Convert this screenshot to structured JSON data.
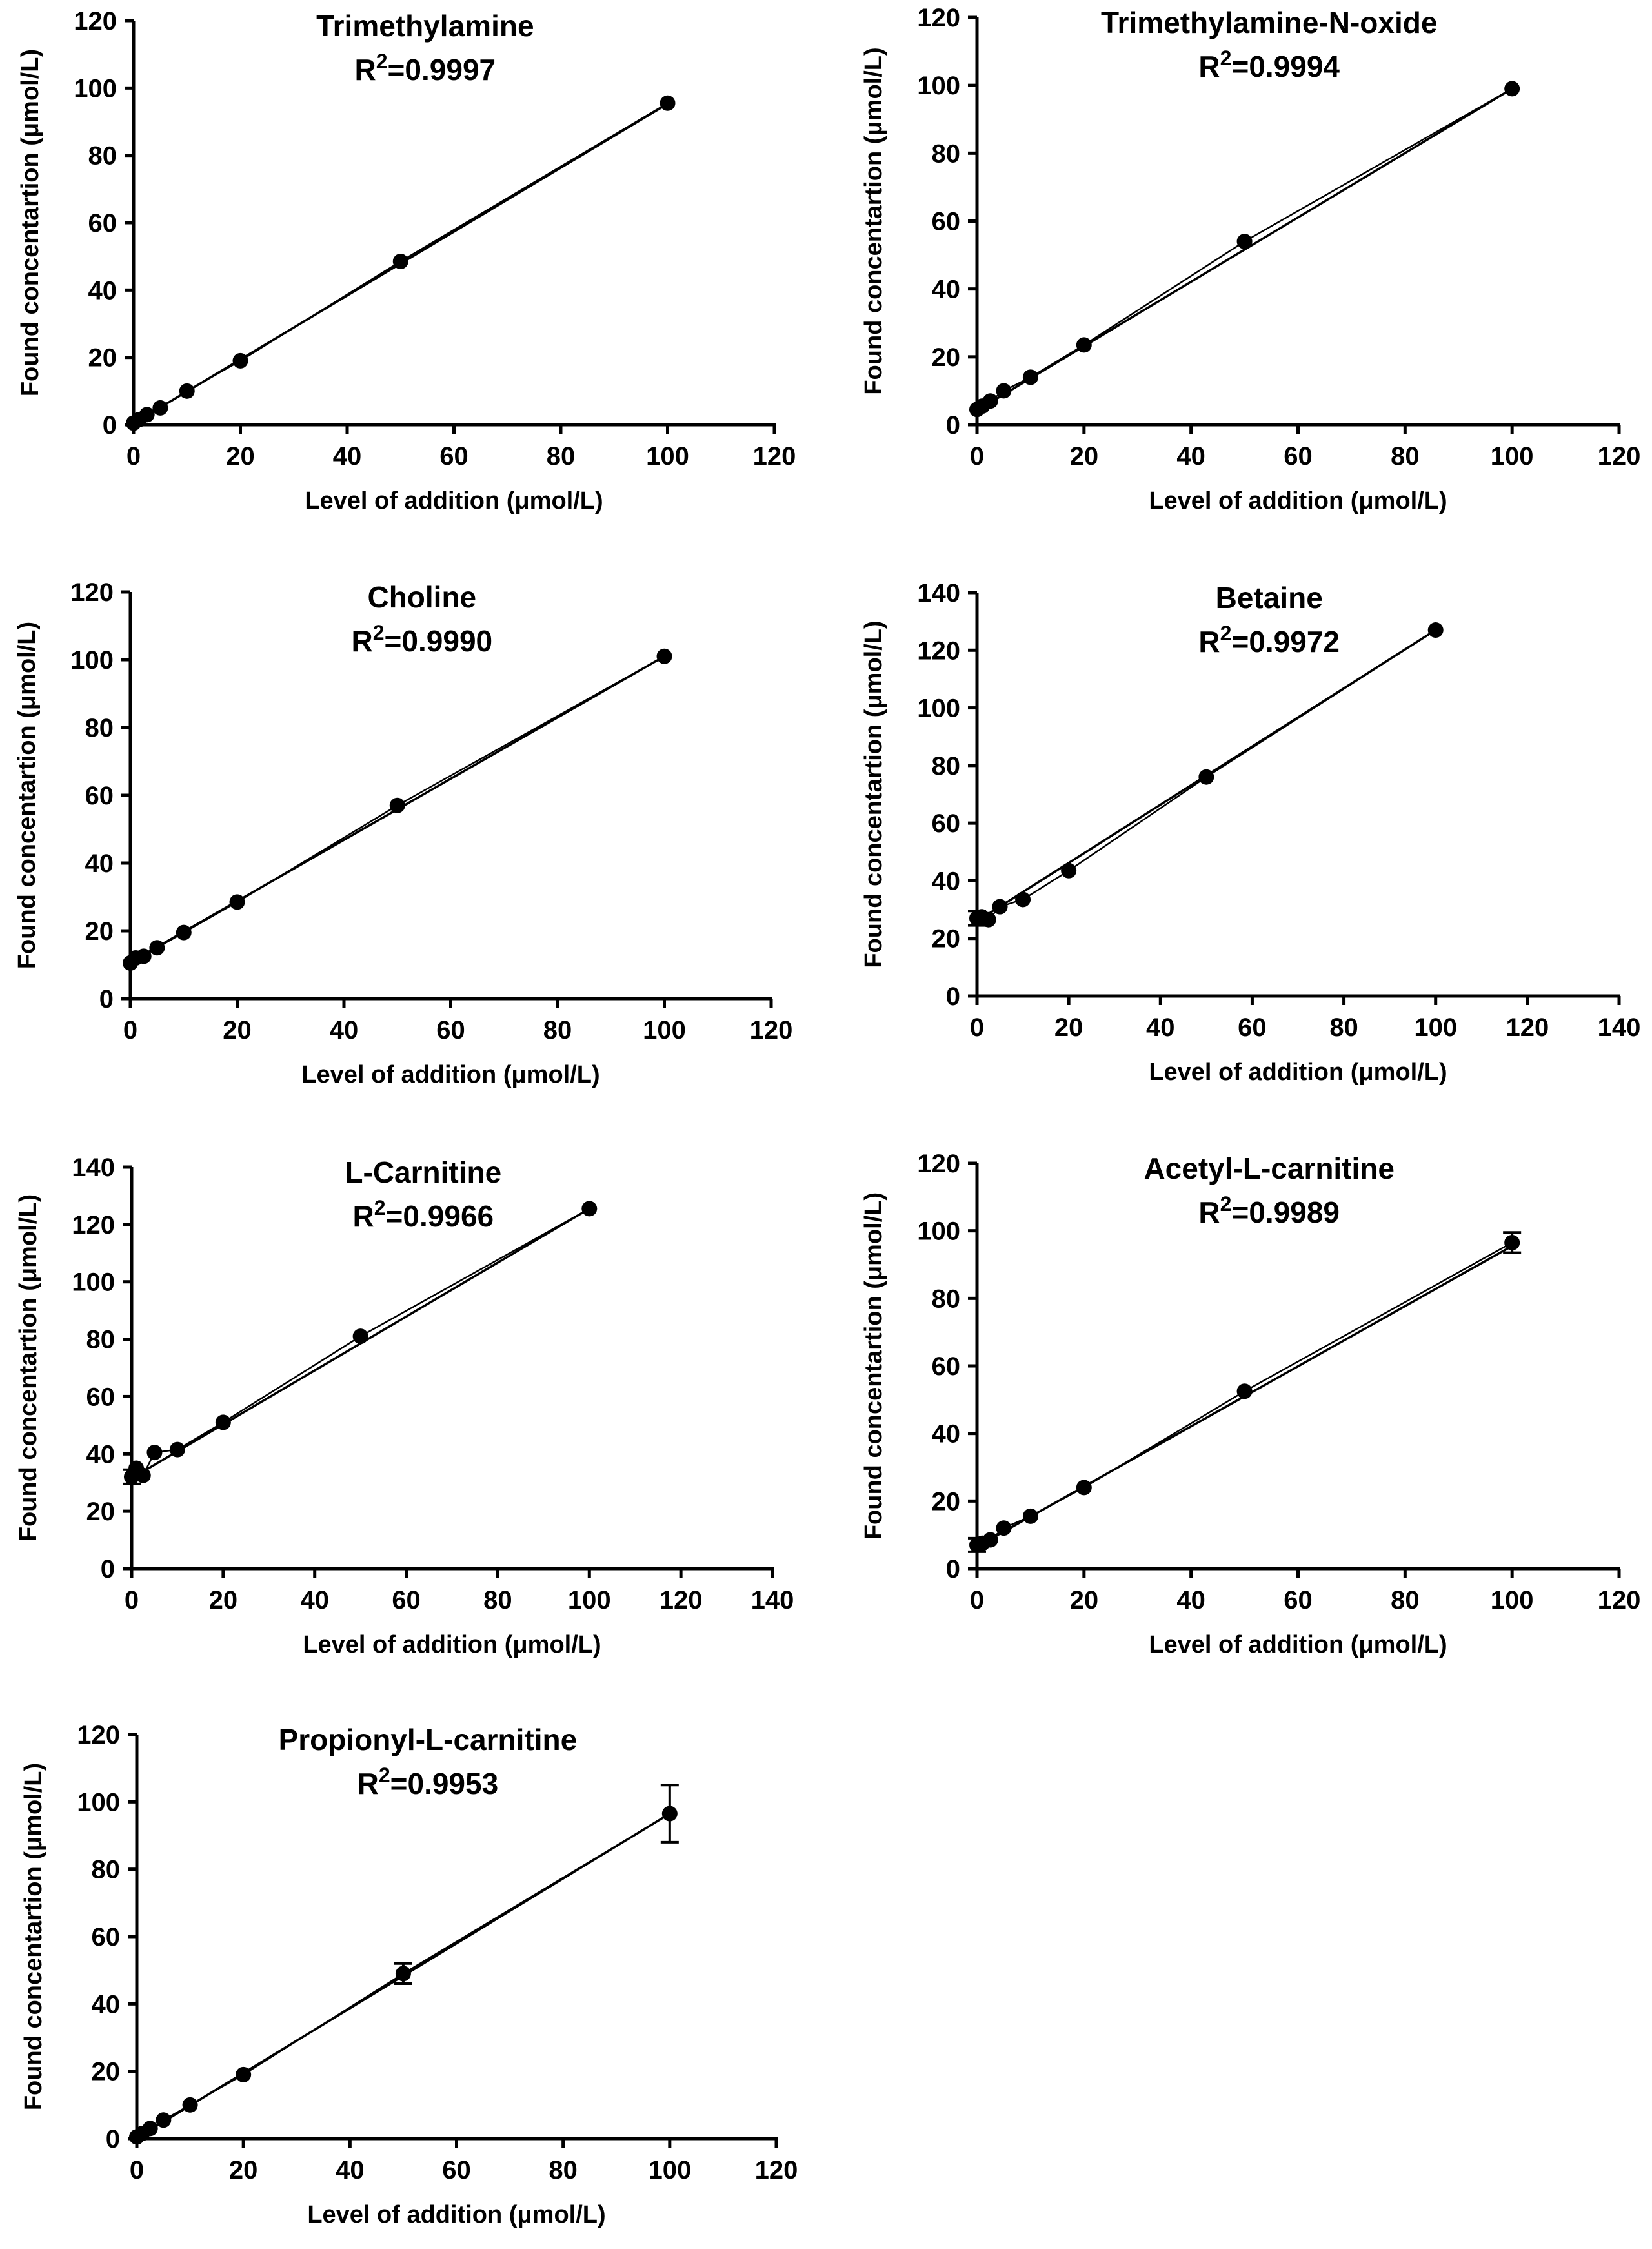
{
  "chart_data": [
    {
      "type": "scatter",
      "title": "Trimethylamine",
      "r2_prefix": "R",
      "r2_sup": "2",
      "r2_value": "=0.9997",
      "xlabel": "Level of addition (μmol/L)",
      "ylabel": "Found concentartion (μmol/L)",
      "xlim": [
        0,
        120
      ],
      "ylim": [
        0,
        120
      ],
      "xticks": [
        "0",
        "20",
        "40",
        "60",
        "80",
        "100",
        "120"
      ],
      "yticks": [
        "0",
        "20",
        "40",
        "60",
        "80",
        "100",
        "120"
      ],
      "x": [
        0,
        1,
        2.5,
        5,
        10,
        20,
        50,
        100
      ],
      "y": [
        0.5,
        1.5,
        3,
        5,
        10,
        19,
        48.5,
        95.5
      ],
      "err": [
        0,
        0,
        0,
        0,
        0,
        0,
        0,
        0
      ],
      "fit": [
        0.4,
        95.3
      ]
    },
    {
      "type": "scatter",
      "title": "Trimethylamine-N-oxide",
      "r2_prefix": "R",
      "r2_sup": "2",
      "r2_value": "=0.9994",
      "xlabel": "Level of addition (μmol/L)",
      "ylabel": "Found concentartion (μmol/L)",
      "xlim": [
        0,
        120
      ],
      "ylim": [
        0,
        120
      ],
      "xticks": [
        "0",
        "20",
        "40",
        "60",
        "80",
        "100",
        "120"
      ],
      "yticks": [
        "0",
        "20",
        "40",
        "60",
        "80",
        "100",
        "120"
      ],
      "x": [
        0,
        1,
        2.5,
        5,
        10,
        20,
        50,
        100
      ],
      "y": [
        4.5,
        5.5,
        7,
        10,
        14,
        23.5,
        54,
        99
      ],
      "err": [
        0,
        0,
        0,
        0,
        0,
        0,
        0,
        0
      ],
      "fit": [
        4.2,
        99
      ]
    },
    {
      "type": "scatter",
      "title": "Choline",
      "r2_prefix": "R",
      "r2_sup": "2",
      "r2_value": "=0.9990",
      "xlabel": "Level of addition (μmol/L)",
      "ylabel": "Found concentartion (μmol/L)",
      "xlim": [
        0,
        120
      ],
      "ylim": [
        0,
        120
      ],
      "xticks": [
        "0",
        "20",
        "40",
        "60",
        "80",
        "100",
        "120"
      ],
      "yticks": [
        "0",
        "20",
        "40",
        "60",
        "80",
        "100",
        "120"
      ],
      "x": [
        0,
        1,
        2.5,
        5,
        10,
        20,
        50,
        100
      ],
      "y": [
        10.5,
        12,
        12.5,
        15,
        19.5,
        28.5,
        57,
        101
      ],
      "err": [
        0,
        0,
        0,
        0,
        0,
        0,
        0,
        0
      ],
      "fit": [
        10.7,
        101
      ]
    },
    {
      "type": "scatter",
      "title": "Betaine",
      "r2_prefix": "R",
      "r2_sup": "2",
      "r2_value": "=0.9972",
      "xlabel": "Level of addition (μmol/L)",
      "ylabel": "Found concentartion (μmol/L)",
      "xlim": [
        0,
        140
      ],
      "ylim": [
        0,
        140
      ],
      "xticks": [
        "0",
        "20",
        "40",
        "60",
        "80",
        "100",
        "120",
        "140"
      ],
      "yticks": [
        "0",
        "20",
        "40",
        "60",
        "80",
        "100",
        "120",
        "140"
      ],
      "x": [
        0,
        1,
        2.5,
        5,
        10,
        20,
        50,
        100
      ],
      "y": [
        27,
        27.5,
        26.5,
        31,
        33.5,
        43.5,
        76,
        127
      ],
      "err": [
        2.5,
        0,
        0,
        0,
        0,
        0,
        0,
        0
      ],
      "fit": [
        26,
        127
      ]
    },
    {
      "type": "scatter",
      "title": "L-Carnitine",
      "r2_prefix": "R",
      "r2_sup": "2",
      "r2_value": "=0.9966",
      "xlabel": "Level of addition (μmol/L)",
      "ylabel": "Found concentartion (μmol/L)",
      "xlim": [
        0,
        140
      ],
      "ylim": [
        0,
        140
      ],
      "xticks": [
        "0",
        "20",
        "40",
        "60",
        "80",
        "100",
        "120",
        "140"
      ],
      "yticks": [
        "0",
        "20",
        "40",
        "60",
        "80",
        "100",
        "120",
        "140"
      ],
      "x": [
        0,
        1,
        2.5,
        5,
        10,
        20,
        50,
        100
      ],
      "y": [
        32,
        35,
        32.5,
        40.5,
        41.5,
        51,
        81,
        125.5
      ],
      "err": [
        2.5,
        0,
        0,
        0,
        0,
        0,
        0,
        0
      ],
      "fit": [
        31.5,
        125.5
      ]
    },
    {
      "type": "scatter",
      "title": "Acetyl-L-carnitine",
      "r2_prefix": "R",
      "r2_sup": "2",
      "r2_value": "=0.9989",
      "xlabel": "Level of addition (μmol/L)",
      "ylabel": "Found concentartion (μmol/L)",
      "xlim": [
        0,
        120
      ],
      "ylim": [
        0,
        120
      ],
      "xticks": [
        "0",
        "20",
        "40",
        "60",
        "80",
        "100",
        "120"
      ],
      "yticks": [
        "0",
        "20",
        "40",
        "60",
        "80",
        "100",
        "120"
      ],
      "x": [
        0,
        1,
        2.5,
        5,
        10,
        20,
        50,
        100
      ],
      "y": [
        7,
        7.5,
        8.5,
        12,
        15.5,
        24,
        52.5,
        96.5
      ],
      "err": [
        2,
        0,
        0,
        0,
        0,
        0,
        0,
        3
      ],
      "fit": [
        6.5,
        95.5
      ]
    },
    {
      "type": "scatter",
      "title": "Propionyl-L-carnitine",
      "r2_prefix": "R",
      "r2_sup": "2",
      "r2_value": "=0.9953",
      "xlabel": "Level of addition (μmol/L)",
      "ylabel": "Found concentartion (μmol/L)",
      "xlim": [
        0,
        120
      ],
      "ylim": [
        0,
        120
      ],
      "xticks": [
        "0",
        "20",
        "40",
        "60",
        "80",
        "100",
        "120"
      ],
      "yticks": [
        "0",
        "20",
        "40",
        "60",
        "80",
        "100",
        "120"
      ],
      "x": [
        0,
        1,
        2.5,
        5,
        10,
        20,
        50,
        100
      ],
      "y": [
        0.5,
        1.5,
        3,
        5.5,
        10,
        19,
        49,
        96.5
      ],
      "err": [
        0,
        0,
        0,
        0,
        0,
        0,
        3,
        8.5
      ],
      "fit": [
        0.2,
        96.5
      ]
    }
  ]
}
